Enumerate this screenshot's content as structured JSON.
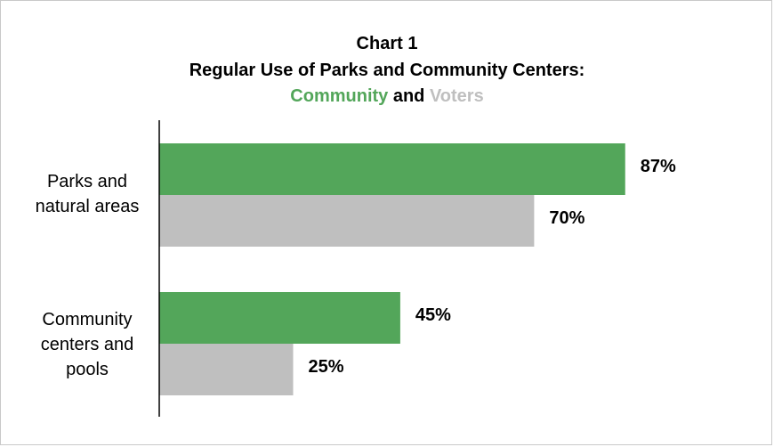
{
  "chart_data": {
    "type": "bar",
    "orientation": "horizontal",
    "title_line1": "Chart 1",
    "title_line2": "Regular Use of Parks and Community Centers:",
    "title_line3": {
      "part1": "Community",
      "part2": " and ",
      "part3": "Voters"
    },
    "categories": [
      [
        "Parks and",
        "natural areas"
      ],
      [
        "Community",
        "centers and",
        "pools"
      ]
    ],
    "series": [
      {
        "name": "Community",
        "values": [
          87,
          45
        ],
        "color": "#53a65a"
      },
      {
        "name": "Voters",
        "values": [
          70,
          25
        ],
        "color": "#bfbfbf"
      }
    ],
    "value_suffix": "%",
    "xlim": [
      0,
      100
    ],
    "grid": false,
    "legend": "in title"
  }
}
